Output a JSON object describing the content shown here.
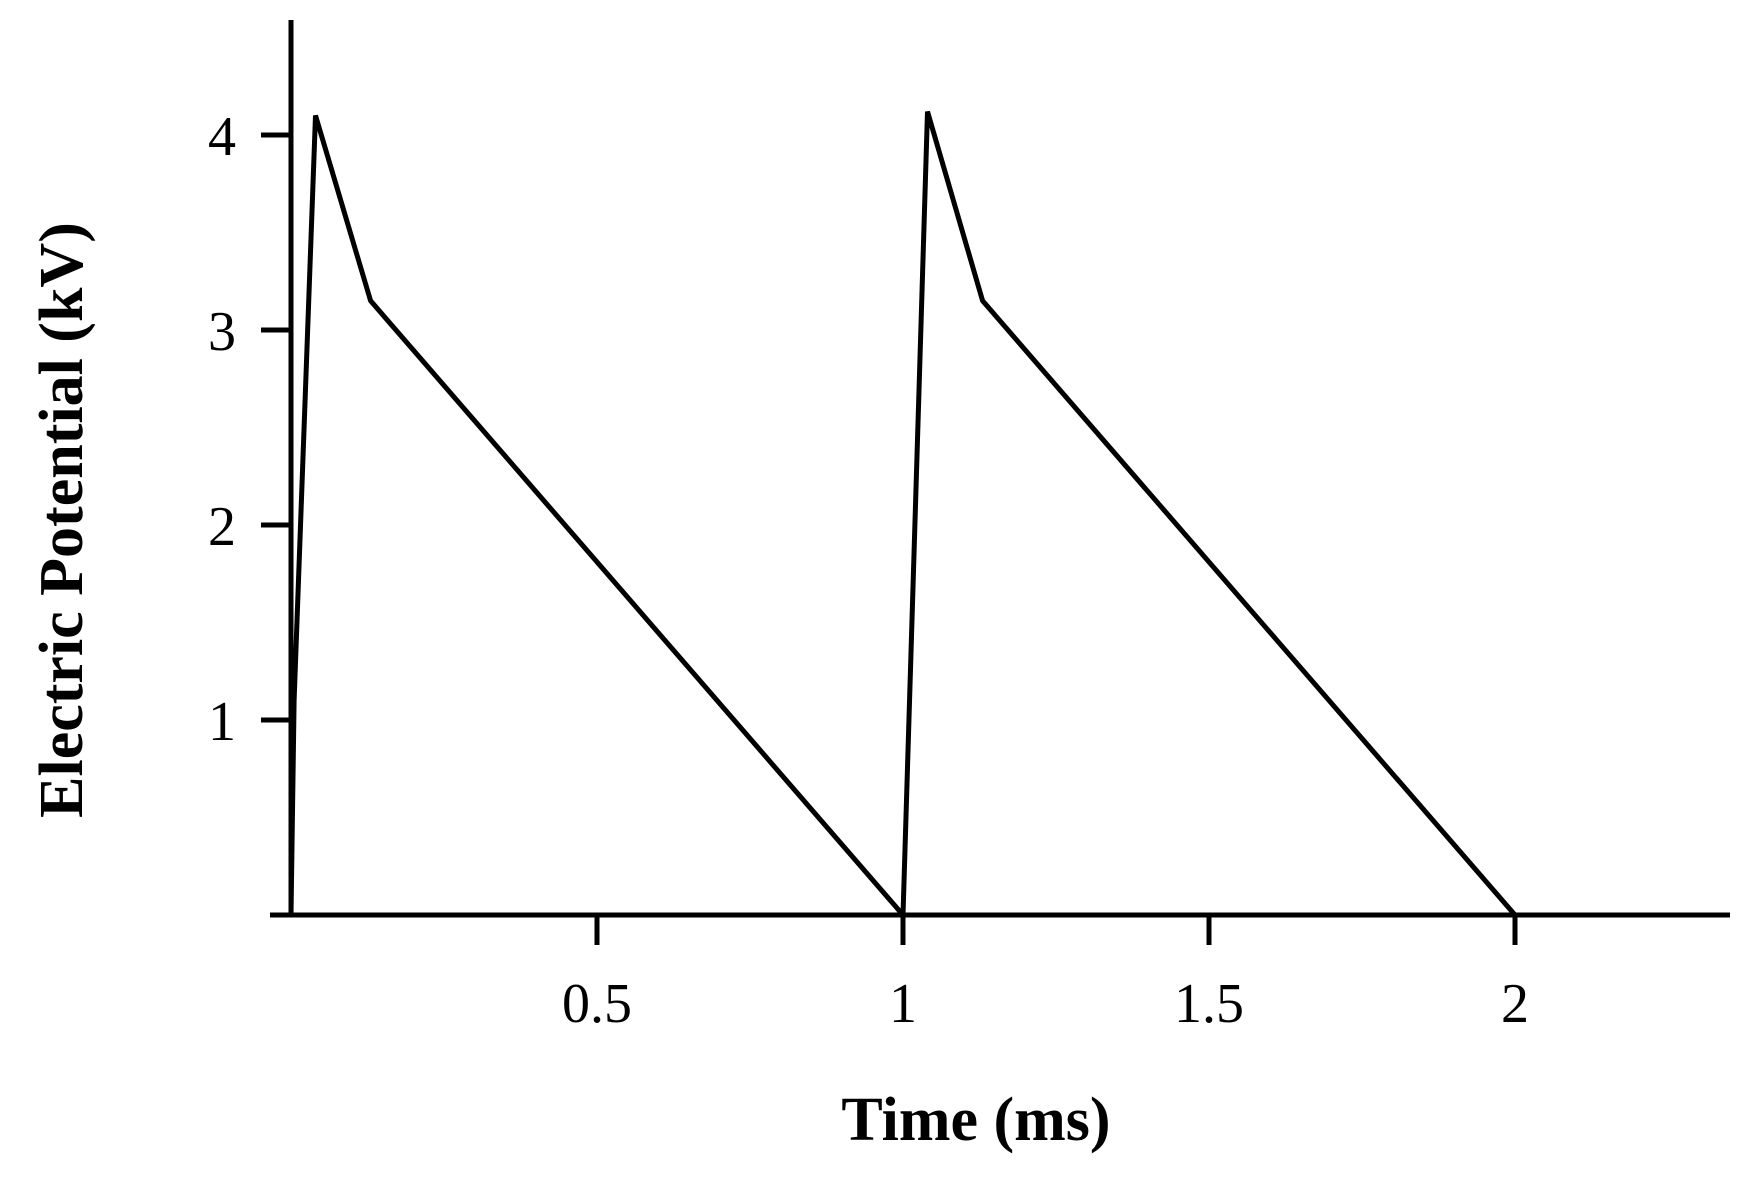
{
  "chart_data": {
    "type": "line",
    "xlabel": "Time (ms)",
    "ylabel": "Electric Potential (kV)",
    "xlim": [
      -0.02,
      2.35
    ],
    "ylim": [
      0,
      4.7
    ],
    "x_ticks": [
      {
        "value": 0.5,
        "label": "0.5"
      },
      {
        "value": 1,
        "label": "1"
      },
      {
        "value": 1.5,
        "label": "1.5"
      },
      {
        "value": 2,
        "label": "2"
      }
    ],
    "y_ticks": [
      {
        "value": 1,
        "label": "1"
      },
      {
        "value": 2,
        "label": "2"
      },
      {
        "value": 3,
        "label": "3"
      },
      {
        "value": 4,
        "label": "4"
      }
    ],
    "grid": false,
    "legend": "none",
    "series": [
      {
        "color": "#000000",
        "x": [
          0.0,
          0.005,
          0.04,
          0.13,
          1.0,
          1.04,
          1.13,
          2.0
        ],
        "y": [
          0.0,
          1.1,
          4.1,
          3.15,
          0.0,
          4.12,
          3.15,
          0.0
        ]
      }
    ]
  }
}
